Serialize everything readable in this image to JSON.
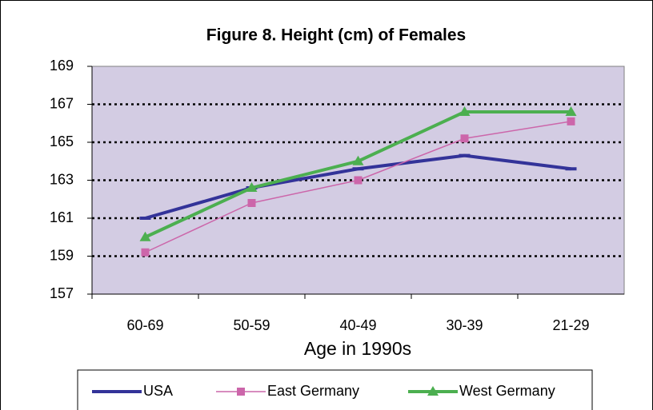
{
  "chart_data": {
    "type": "line",
    "title": "Figure 8. Height (cm) of Females",
    "x_label": "Age in 1990s",
    "categories": [
      "60-69",
      "50-59",
      "40-49",
      "30-39",
      "21-29"
    ],
    "series": [
      {
        "name": "USA",
        "color": "#333399",
        "marker": "dash",
        "values": [
          161.0,
          162.6,
          163.6,
          164.3,
          163.6
        ]
      },
      {
        "name": "East Germany",
        "color": "#cc66aa",
        "marker": "square",
        "values": [
          159.2,
          161.8,
          163.0,
          165.2,
          166.1
        ]
      },
      {
        "name": "West Germany",
        "color": "#4caf50",
        "marker": "triangle",
        "values": [
          160.0,
          162.6,
          164.0,
          166.6,
          166.6
        ]
      }
    ],
    "ylim": [
      157,
      169
    ],
    "yticks": [
      157,
      159,
      161,
      163,
      165,
      167,
      169
    ],
    "grid": true,
    "legend": "bottom"
  }
}
